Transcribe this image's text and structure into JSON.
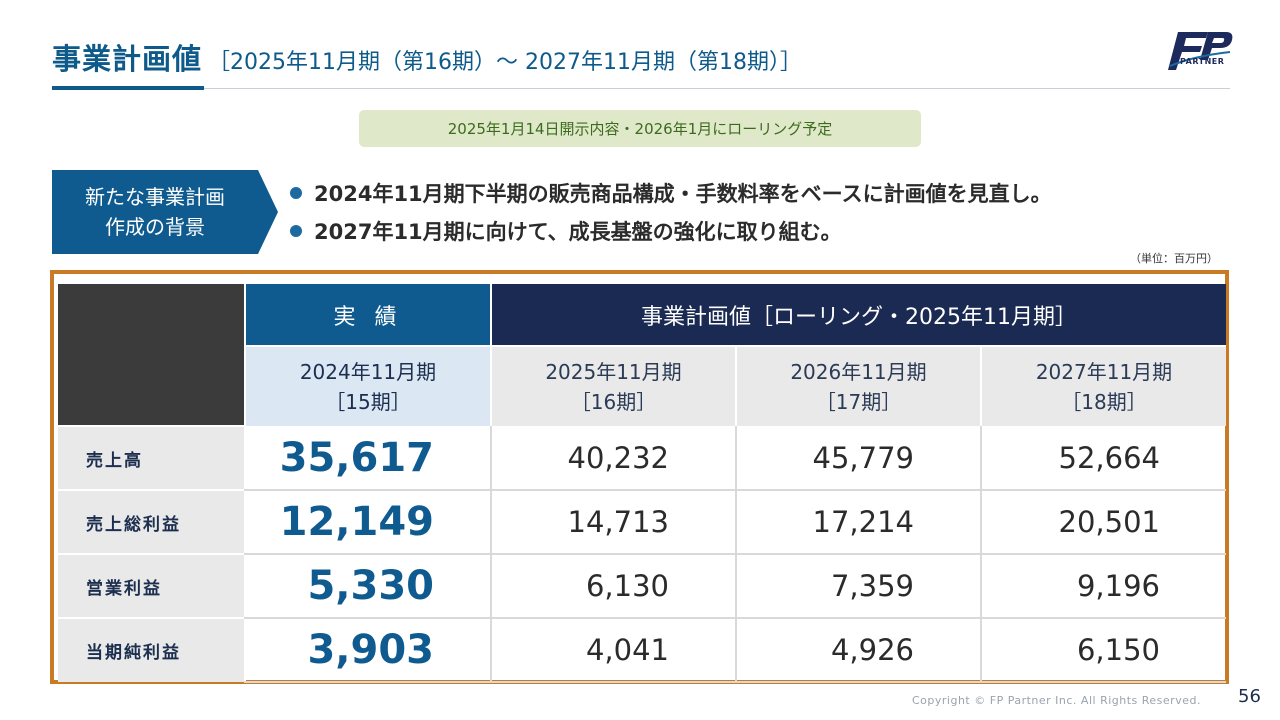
{
  "header": {
    "title": "事業計画値",
    "subtitle": "［2025年11月期（第16期）～ 2027年11月期（第18期）］",
    "logo_text": "PARTNER"
  },
  "notice": "2025年1月14日開示内容・2026年1月にローリング予定",
  "background": {
    "label_line1": "新たな事業計画",
    "label_line2": "作成の背景",
    "bullets": [
      "2024年11月期下半期の販売商品構成・手数料率をベースに計画値を見直し。",
      "2027年11月期に向けて、成長基盤の強化に取り組む。"
    ]
  },
  "unit": "（単位：百万円）",
  "table": {
    "group_actual": "実 績",
    "group_plan": "事業計画値［ローリング・2025年11月期］",
    "periods": [
      {
        "year": "2024年11月期",
        "term": "［15期］"
      },
      {
        "year": "2025年11月期",
        "term": "［16期］"
      },
      {
        "year": "2026年11月期",
        "term": "［17期］"
      },
      {
        "year": "2027年11月期",
        "term": "［18期］"
      }
    ],
    "rows": [
      {
        "label": "売上高",
        "values": [
          "35,617",
          "40,232",
          "45,779",
          "52,664"
        ]
      },
      {
        "label": "売上総利益",
        "values": [
          "12,149",
          "14,713",
          "17,214",
          "20,501"
        ]
      },
      {
        "label": "営業利益",
        "values": [
          "5,330",
          "6,130",
          "7,359",
          "9,196"
        ]
      },
      {
        "label": "当期純利益",
        "values": [
          "3,903",
          "4,041",
          "4,926",
          "6,150"
        ]
      }
    ]
  },
  "footer": {
    "copyright": "Copyright © FP Partner Inc. All Rights Reserved.",
    "page_number": "56"
  },
  "colors": {
    "primary_blue": "#0f5b8f",
    "navy": "#1b2a52",
    "frame_orange": "#c97a25",
    "notice_green": "#dfe9c9"
  }
}
